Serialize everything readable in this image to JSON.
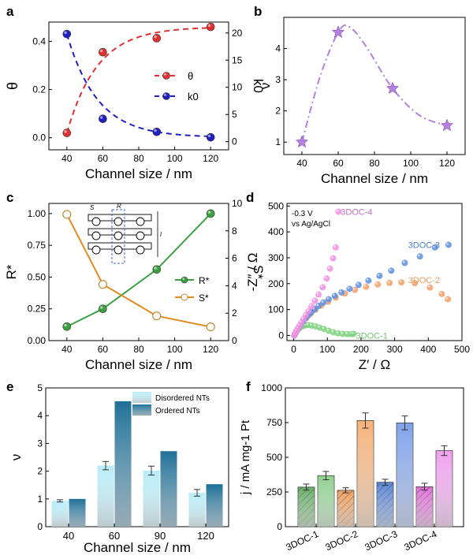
{
  "chart_data": [
    {
      "panel": "a",
      "type": "scatter",
      "xlabel": "Channel size / nm",
      "ylabel": "θ",
      "ylabel_right": "k0",
      "xlim": [
        30,
        130
      ],
      "xticks": [
        40,
        60,
        80,
        100,
        120
      ],
      "ylim": [
        -0.05,
        0.48
      ],
      "yticks": [
        0.0,
        0.2,
        0.4
      ],
      "ylim_right": [
        -1.5,
        22
      ],
      "yticks_right": [
        0,
        5,
        10,
        15,
        20
      ],
      "legend": "right",
      "series": [
        {
          "name": "θ",
          "axis": "left",
          "color": "#e03030",
          "x": [
            40,
            60,
            90,
            120
          ],
          "y": [
            0.02,
            0.355,
            0.413,
            0.46
          ]
        },
        {
          "name": "k0",
          "axis": "right",
          "color": "#2020c0",
          "x": [
            40,
            60,
            90,
            120
          ],
          "y": [
            19.8,
            4.2,
            1.8,
            0.8
          ]
        }
      ]
    },
    {
      "panel": "b",
      "type": "line",
      "xlabel": "Channel size / nm",
      "ylabel": "ν",
      "xlim": [
        30,
        130
      ],
      "xticks": [
        40,
        60,
        80,
        100,
        120
      ],
      "ylim": [
        0.6,
        5.0
      ],
      "yticks": [
        1,
        2,
        3,
        4
      ],
      "series": [
        {
          "color": "#b47fe0",
          "x": [
            40,
            60,
            90,
            120
          ],
          "y": [
            1.0,
            4.52,
            2.72,
            1.53
          ]
        }
      ]
    },
    {
      "panel": "c",
      "type": "line",
      "xlabel": "Channel size / nm",
      "ylabel": "R*",
      "ylabel_right": "S*",
      "xlim": [
        30,
        130
      ],
      "xticks": [
        40,
        60,
        80,
        100,
        120
      ],
      "ylim": [
        0.0,
        1.08
      ],
      "yticks": [
        0.0,
        0.25,
        0.5,
        0.75,
        1.0
      ],
      "ylim_right": [
        0,
        10
      ],
      "yticks_right": [
        0,
        2,
        4,
        6,
        8,
        10
      ],
      "legend": "right",
      "inset_labels": [
        "S",
        "R",
        "l"
      ],
      "series": [
        {
          "name": "R*",
          "axis": "left",
          "color": "#3aa040",
          "x": [
            40,
            60,
            90,
            120
          ],
          "y": [
            0.11,
            0.25,
            0.56,
            1.0
          ]
        },
        {
          "name": "S*",
          "axis": "right",
          "color": "#e08a20",
          "x": [
            40,
            60,
            90,
            120
          ],
          "y": [
            9.2,
            4.1,
            1.8,
            1.0
          ]
        }
      ]
    },
    {
      "panel": "d",
      "type": "scatter",
      "xlabel": "Z′ / Ω",
      "ylabel": "-Z″ / Ω",
      "xlim": [
        -20,
        500
      ],
      "xticks": [
        0,
        100,
        200,
        300,
        400,
        500
      ],
      "ylim": [
        -20,
        510
      ],
      "yticks": [
        0,
        100,
        200,
        300,
        400,
        500
      ],
      "annotations": [
        "-0.3 V",
        "vs Ag/AgCl"
      ],
      "series": [
        {
          "name": "3DOC-4",
          "color": "#f08fe0",
          "x": [
            2,
            4,
            7,
            10,
            14,
            18,
            23,
            29,
            36,
            44,
            53,
            63,
            74,
            86,
            98,
            108,
            117,
            125,
            133
          ],
          "y": [
            0,
            6,
            13,
            20,
            29,
            39,
            50,
            63,
            78,
            94,
            113,
            134,
            158,
            186,
            220,
            258,
            298,
            340,
            478
          ]
        },
        {
          "name": "3DOC-3",
          "color": "#5a8ee0",
          "x": [
            2,
            5,
            8,
            12,
            17,
            22,
            28,
            35,
            43,
            52,
            62,
            74,
            88,
            104,
            122,
            142,
            166,
            193,
            222,
            255,
            290,
            330,
            375,
            420,
            460
          ],
          "y": [
            0,
            8,
            16,
            25,
            35,
            45,
            55,
            66,
            77,
            89,
            101,
            114,
            127,
            140,
            153,
            166,
            180,
            195,
            212,
            230,
            250,
            280,
            305,
            340,
            350
          ]
        },
        {
          "name": "3DOC-2",
          "color": "#f0a068",
          "x": [
            2,
            5,
            9,
            14,
            20,
            28,
            38,
            50,
            65,
            82,
            102,
            125,
            152,
            182,
            215,
            250,
            285,
            320,
            360,
            405,
            440,
            458
          ],
          "y": [
            0,
            8,
            18,
            29,
            41,
            54,
            68,
            83,
            99,
            115,
            130,
            146,
            162,
            176,
            188,
            197,
            203,
            205,
            202,
            185,
            160,
            140
          ]
        },
        {
          "name": "3DOC-1",
          "color": "#7ed17e",
          "x": [
            2,
            5,
            9,
            14,
            20,
            27,
            35,
            44,
            54,
            65,
            77,
            90,
            104,
            118,
            132,
            146,
            160,
            172,
            178
          ],
          "y": [
            0,
            8,
            16,
            24,
            31,
            36,
            39,
            40,
            38,
            35,
            30,
            25,
            18,
            12,
            8,
            6,
            5,
            5,
            6
          ]
        }
      ]
    },
    {
      "panel": "e",
      "type": "bar",
      "xlabel": "Channel size / nm",
      "ylabel": "ν",
      "categories": [
        "40",
        "60",
        "90",
        "120"
      ],
      "ylim": [
        0,
        5
      ],
      "yticks": [
        0,
        1,
        2,
        3,
        4,
        5
      ],
      "legend": "top-right",
      "series": [
        {
          "name": "Disordered NTs",
          "color": "#b8ecf8",
          "values": [
            0.93,
            2.2,
            2.02,
            1.22
          ],
          "errors": [
            0.04,
            0.15,
            0.16,
            0.12
          ]
        },
        {
          "name": "Ordered NTs",
          "color": "#1f6f97",
          "values": [
            1.0,
            4.52,
            2.72,
            1.53
          ]
        }
      ]
    },
    {
      "panel": "f",
      "type": "bar",
      "xlabel": "",
      "ylabel": "j / mA mg-1 Pt",
      "categories": [
        "3DOC-1",
        "3DOC-2",
        "3DOC-3",
        "3DOC-4"
      ],
      "ylim": [
        0,
        1000
      ],
      "yticks": [
        0,
        250,
        500,
        750,
        1000
      ],
      "bars": [
        {
          "category": "3DOC-1",
          "hatched": true,
          "color": "#6ab06a",
          "value": 285,
          "error": 22
        },
        {
          "category": "3DOC-1",
          "hatched": false,
          "color": "#8fd08f",
          "value": 368,
          "error": 30
        },
        {
          "category": "3DOC-2",
          "hatched": true,
          "color": "#f0a060",
          "value": 262,
          "error": 18
        },
        {
          "category": "3DOC-2",
          "hatched": false,
          "color": "#f6b27a",
          "value": 765,
          "error": 55
        },
        {
          "category": "3DOC-3",
          "hatched": true,
          "color": "#5a86d8",
          "value": 320,
          "error": 22
        },
        {
          "category": "3DOC-3",
          "hatched": false,
          "color": "#7ea2ea",
          "value": 748,
          "error": 50
        },
        {
          "category": "3DOC-4",
          "hatched": true,
          "color": "#e070d8",
          "value": 288,
          "error": 25
        },
        {
          "category": "3DOC-4",
          "hatched": false,
          "color": "#f0a0ee",
          "value": 548,
          "error": 35
        }
      ]
    }
  ],
  "panels": {
    "a": {
      "letter": "a"
    },
    "b": {
      "letter": "b"
    },
    "c": {
      "letter": "c"
    },
    "d": {
      "letter": "d"
    },
    "e": {
      "letter": "e"
    },
    "f": {
      "letter": "f"
    }
  }
}
